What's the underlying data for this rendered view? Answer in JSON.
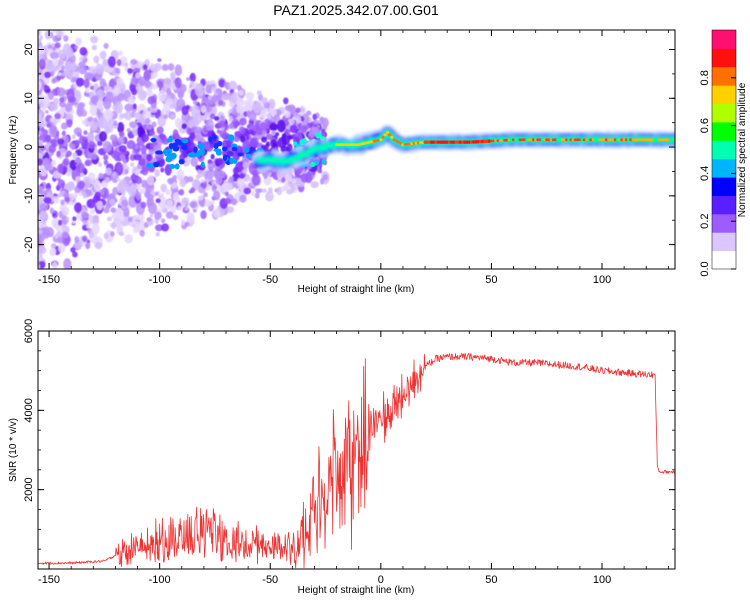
{
  "title": "PAZ1.2025.342.07.00.G01",
  "chart_data": [
    {
      "type": "heatmap",
      "name": "Spectrogram",
      "xlabel": "Height of straight line (km)",
      "ylabel": "Frequency (Hz)",
      "xlim": [
        -155,
        133
      ],
      "ylim": [
        -25,
        24
      ],
      "x_ticks": [
        "-150",
        "-100",
        "-50",
        "0",
        "50",
        "100"
      ],
      "y_ticks": [
        "-20",
        "-10",
        "0",
        "10",
        "20"
      ],
      "colorbar": {
        "label": "Normalized spectral amplitude",
        "range": [
          0,
          1
        ],
        "ticks": [
          "0.0",
          "0.2",
          "0.4",
          "0.6",
          "0.8"
        ],
        "colors": [
          "#ffffff",
          "#dcc6ff",
          "#9d5cff",
          "#5a1fff",
          "#0000ff",
          "#00b5ff",
          "#00ffb0",
          "#00ff00",
          "#b0ff00",
          "#ffd000",
          "#ff7000",
          "#ff1010",
          "#ff1070"
        ]
      },
      "ridge": {
        "x": [
          -55,
          -50,
          -45,
          -40,
          -35,
          -30,
          -25,
          -20,
          -15,
          -10,
          -5,
          0,
          3,
          6,
          10,
          20,
          40,
          60,
          80,
          100,
          120,
          133
        ],
        "y": [
          -3,
          -2.5,
          -3,
          -2.5,
          -1.5,
          -0.5,
          0,
          0.5,
          0.5,
          0.5,
          1,
          1.5,
          3,
          1.5,
          0.5,
          1,
          1,
          1.5,
          1.5,
          1.5,
          1.5,
          1.5
        ]
      },
      "noise_x_range": [
        -155,
        -25
      ]
    },
    {
      "type": "line",
      "name": "SNR",
      "xlabel": "Height of straight line (km)",
      "ylabel": "SNR (10 * v/v)",
      "xlim": [
        -155,
        133
      ],
      "ylim": [
        0,
        6000
      ],
      "x_ticks": [
        "-150",
        "-100",
        "-50",
        "0",
        "50",
        "100"
      ],
      "y_ticks": [
        "2000",
        "4000",
        "6000"
      ],
      "line_color": "#ee3333",
      "series": [
        {
          "name": "SNR",
          "x": [
            -155,
            -140,
            -125,
            -118,
            -110,
            -100,
            -90,
            -80,
            -75,
            -70,
            -60,
            -50,
            -40,
            -35,
            -30,
            -25,
            -20,
            -15,
            -10,
            -5,
            0,
            5,
            8,
            10,
            12,
            15,
            20,
            25,
            30,
            40,
            50,
            60,
            70,
            80,
            90,
            100,
            110,
            120,
            124,
            125,
            126,
            133
          ],
          "values": [
            150,
            150,
            200,
            400,
            600,
            800,
            900,
            1000,
            1050,
            800,
            700,
            600,
            650,
            900,
            1600,
            2300,
            2700,
            2900,
            3200,
            3500,
            3800,
            3900,
            4200,
            4300,
            4500,
            4800,
            5100,
            5300,
            5350,
            5350,
            5300,
            5200,
            5200,
            5150,
            5100,
            5000,
            4950,
            4900,
            4900,
            2600,
            2450,
            2450
          ]
        }
      ]
    }
  ]
}
